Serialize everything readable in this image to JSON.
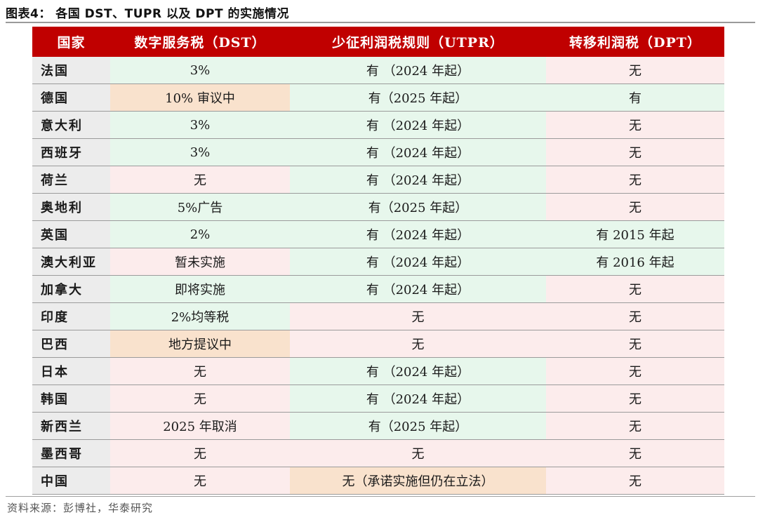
{
  "title": "图表4：  各国 DST、TUPR 以及 DPT 的实施情况",
  "headers": [
    "国家",
    "数字服务税（DST）",
    "少征利润税规则（UTPR）",
    "转移利润税（DPT）"
  ],
  "rows": [
    {
      "country": "法国",
      "dst": "3%",
      "utpr": "有 （2024 年起）",
      "dpt": "无",
      "colors": [
        "g",
        "g",
        "p"
      ]
    },
    {
      "country": "德国",
      "dst": "10% 审议中",
      "utpr": "有（2025 年起）",
      "dpt": "有",
      "colors": [
        "o",
        "g",
        "g"
      ]
    },
    {
      "country": "意大利",
      "dst": "3%",
      "utpr": "有 （2024 年起）",
      "dpt": "无",
      "colors": [
        "g",
        "g",
        "p"
      ]
    },
    {
      "country": "西班牙",
      "dst": "3%",
      "utpr": "有 （2024 年起）",
      "dpt": "无",
      "colors": [
        "g",
        "g",
        "p"
      ]
    },
    {
      "country": "荷兰",
      "dst": "无",
      "utpr": "有 （2024 年起）",
      "dpt": "无",
      "colors": [
        "p",
        "g",
        "p"
      ]
    },
    {
      "country": "奥地利",
      "dst": "5%广告",
      "utpr": "有（2025 年起）",
      "dpt": "无",
      "colors": [
        "g",
        "g",
        "p"
      ]
    },
    {
      "country": "英国",
      "dst": "2%",
      "utpr": "有 （2024 年起）",
      "dpt": "有 2015 年起",
      "colors": [
        "g",
        "g",
        "g"
      ]
    },
    {
      "country": "澳大利亚",
      "dst": "暂未实施",
      "utpr": "有 （2024 年起）",
      "dpt": "有 2016 年起",
      "colors": [
        "p",
        "g",
        "g"
      ]
    },
    {
      "country": "加拿大",
      "dst": "即将实施",
      "utpr": "有 （2024 年起）",
      "dpt": "无",
      "colors": [
        "g",
        "g",
        "p"
      ]
    },
    {
      "country": "印度",
      "dst": "2%均等税",
      "utpr": "无",
      "dpt": "无",
      "colors": [
        "g",
        "p",
        "p"
      ]
    },
    {
      "country": "巴西",
      "dst": "地方提议中",
      "utpr": "无",
      "dpt": "无",
      "colors": [
        "o",
        "p",
        "p"
      ]
    },
    {
      "country": "日本",
      "dst": "无",
      "utpr": "有 （2024 年起）",
      "dpt": "无",
      "colors": [
        "p",
        "g",
        "p"
      ]
    },
    {
      "country": "韩国",
      "dst": "无",
      "utpr": "有 （2024 年起）",
      "dpt": "无",
      "colors": [
        "p",
        "g",
        "p"
      ]
    },
    {
      "country": "新西兰",
      "dst": "2025 年取消",
      "utpr": "有（2025 年起）",
      "dpt": "无",
      "colors": [
        "p",
        "g",
        "p"
      ]
    },
    {
      "country": "墨西哥",
      "dst": "无",
      "utpr": "无",
      "dpt": "无",
      "colors": [
        "p",
        "p",
        "p"
      ]
    },
    {
      "country": "中国",
      "dst": "无",
      "utpr": "无（承诺实施但仍在立法）",
      "dpt": "无",
      "colors": [
        "p",
        "o",
        "p"
      ]
    }
  ],
  "source": "资料来源：彭博社，华泰研究",
  "colors": {
    "header_bg": "#c00000",
    "green": "#e7f7ec",
    "pink": "#fcecec",
    "orange": "#f9e2cd",
    "country_bg": "#ececec"
  }
}
